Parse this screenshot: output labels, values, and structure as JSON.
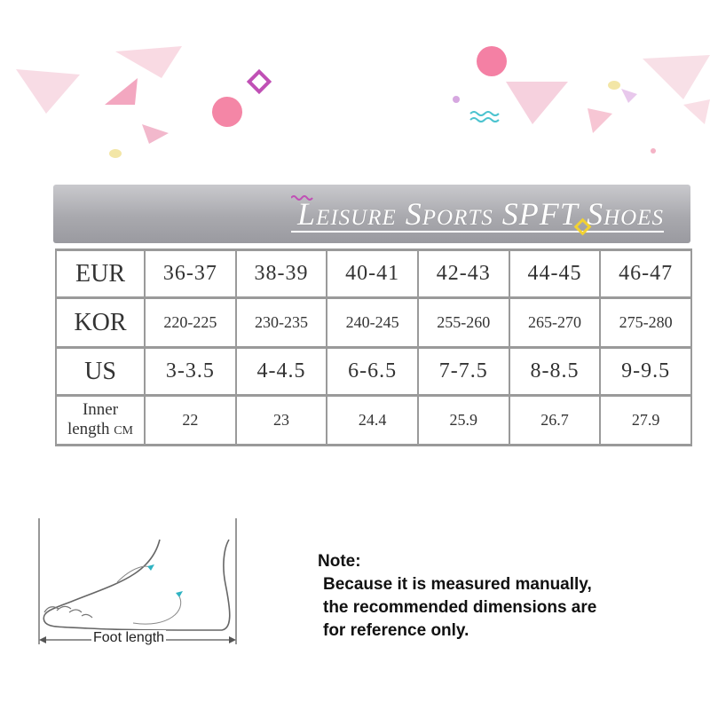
{
  "banner": {
    "title": "Leisure Sports SPFT Shoes"
  },
  "table": {
    "rows": [
      {
        "label": "EUR",
        "cells": [
          "36-37",
          "38-39",
          "40-41",
          "42-43",
          "44-45",
          "46-47"
        ]
      },
      {
        "label": "KOR",
        "cells": [
          "220-225",
          "230-235",
          "240-245",
          "255-260",
          "265-270",
          "275-280"
        ]
      },
      {
        "label": "US",
        "cells": [
          "3-3.5",
          "4-4.5",
          "6-6.5",
          "7-7.5",
          "8-8.5",
          "9-9.5"
        ]
      },
      {
        "label_line1": "Inner",
        "label_line2": "length",
        "unit": "CM",
        "cells": [
          "22",
          "23",
          "24.4",
          "25.9",
          "26.7",
          "27.9"
        ]
      }
    ]
  },
  "diagram": {
    "foot_length_label": "Foot length"
  },
  "note": {
    "heading": "Note:",
    "line1": "Because it is measured manually,",
    "line2": "the recommended dimensions are",
    "line3": "for reference only."
  },
  "colors": {
    "banner": "#a9a9ae",
    "grid": "#9a9a9a",
    "pink": "#f39bb4",
    "lavender": "#d9b3e0",
    "teal": "#4cc3cf"
  }
}
